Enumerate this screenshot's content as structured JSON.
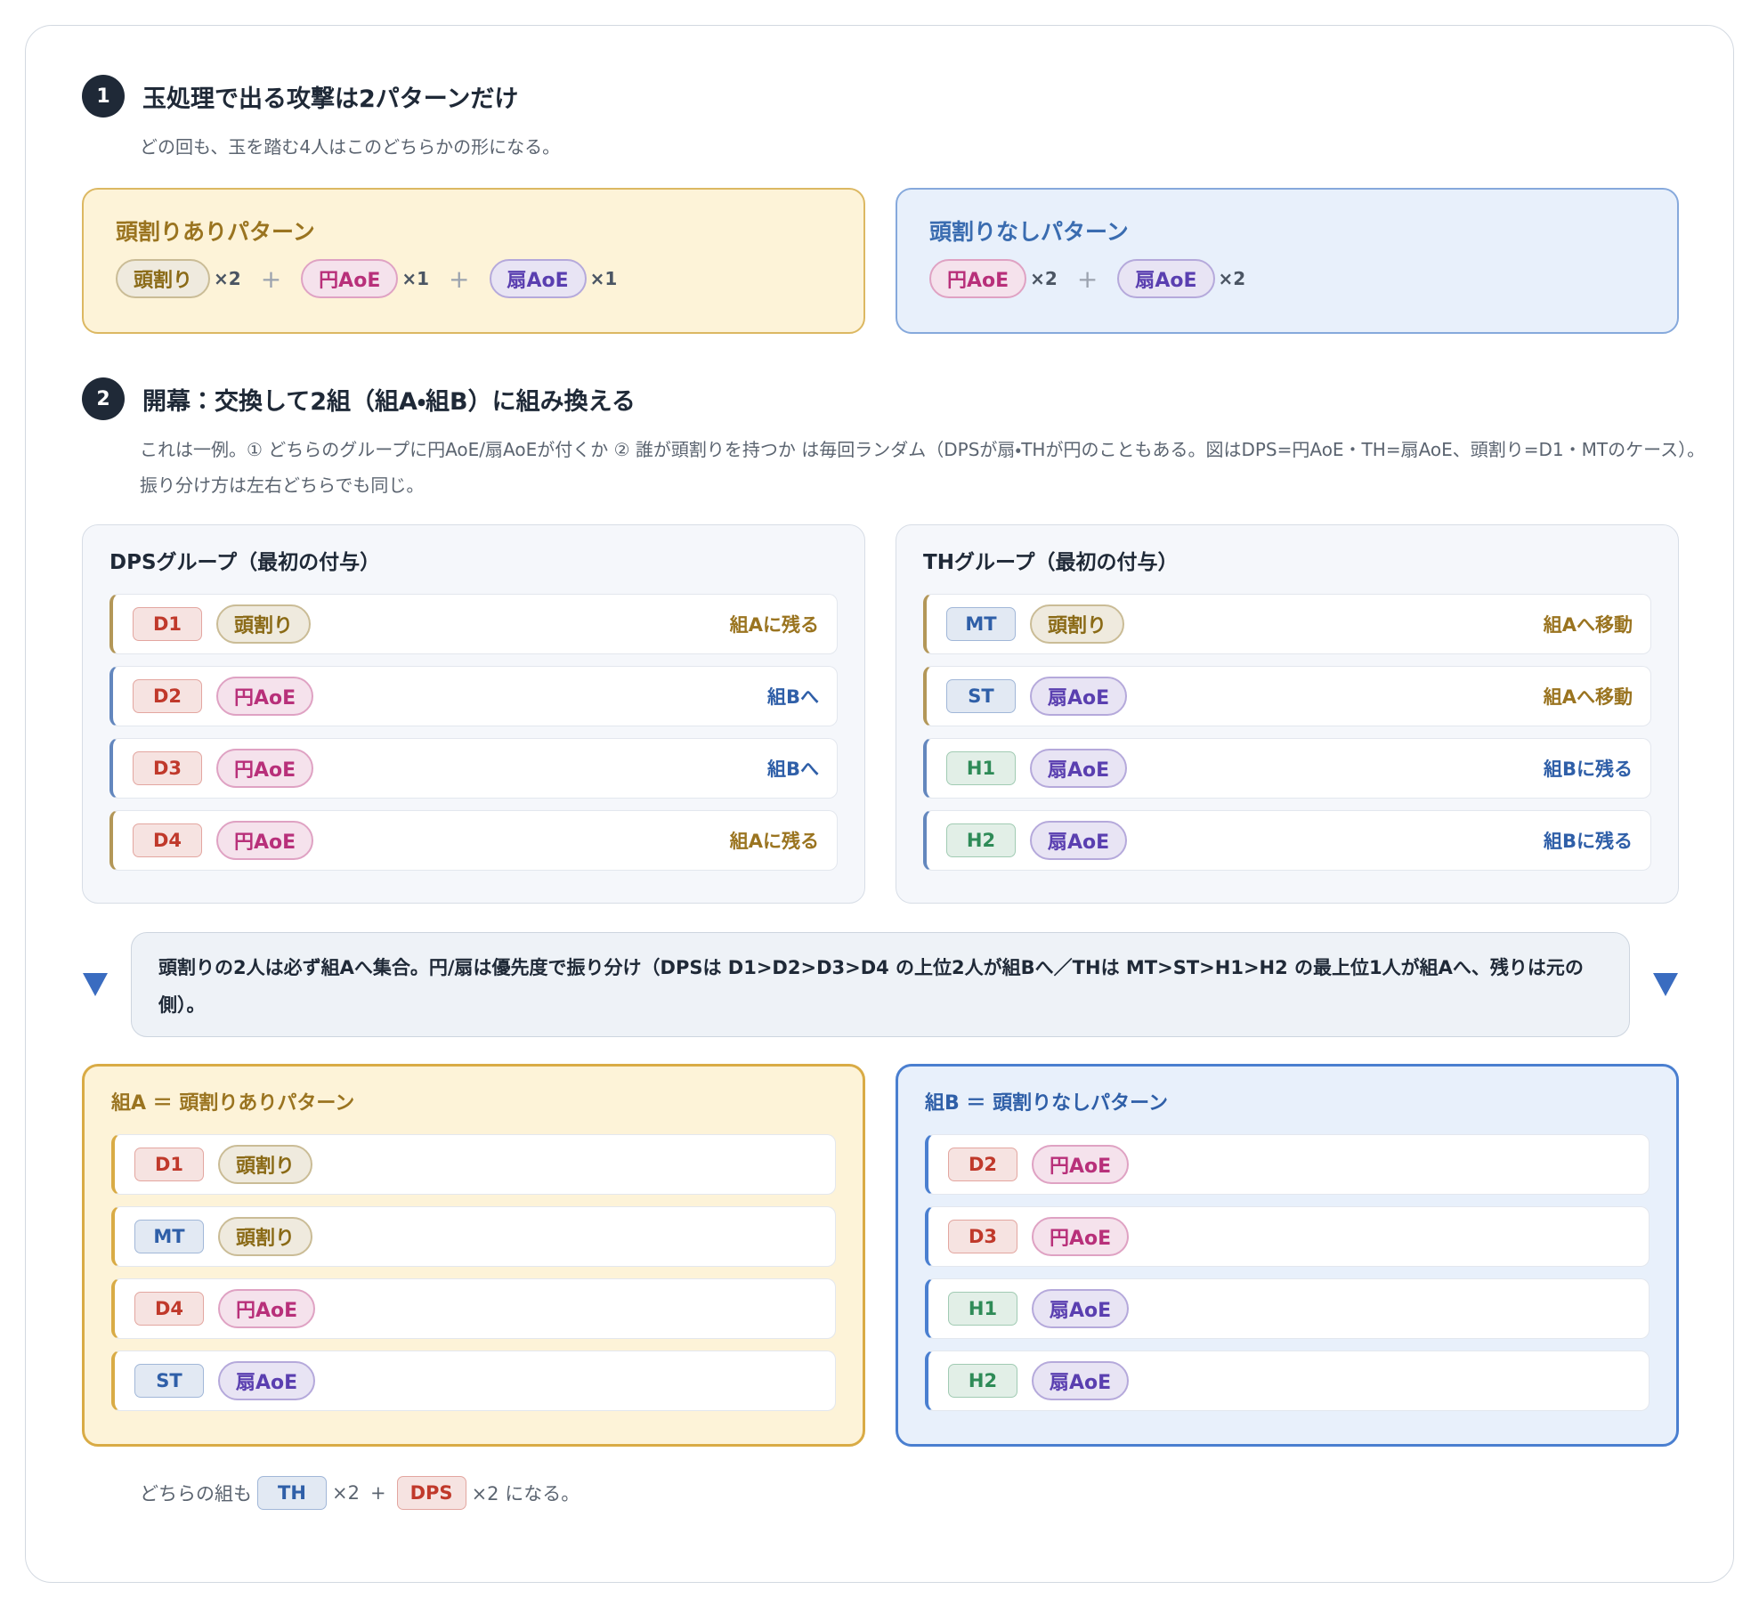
{
  "plus": "+",
  "section1": {
    "number": "1",
    "title": "玉処理で出る攻撃は2パターンだけ",
    "note": "どの回も、玉を踏む4人はこのどちらかの形になる。",
    "patterns": [
      {
        "title": "頭割りありパターン",
        "color": "#9a7420",
        "bg": "#fdf3d8",
        "border": "#dcb862",
        "items": [
          {
            "tag": "頭割り",
            "color": "#8a6a16",
            "count": "×2"
          },
          {
            "tag": "円AoE",
            "color": "#b8307a",
            "count": "×1"
          },
          {
            "tag": "扇AoE",
            "color": "#5a3fb0",
            "count": "×1"
          }
        ]
      },
      {
        "title": "頭割りなしパターン",
        "color": "#3a6cb0",
        "bg": "#e8f0fb",
        "border": "#86a9dc",
        "items": [
          {
            "tag": "円AoE",
            "color": "#b8307a",
            "count": "×2"
          },
          {
            "tag": "扇AoE",
            "color": "#5a3fb0",
            "count": "×2"
          }
        ]
      }
    ]
  },
  "section2": {
    "number": "2",
    "title": "開幕：交換して2組（組A・組B）に組み換える",
    "note": "これは一例。① どちらのグループに円AoE/扇AoEが付くか ② 誰が頭割りを持つか は毎回ランダム（DPSが扇・THが円のこともある。図はDPS=円AoE・TH=扇AoE、頭割り=D1・MTのケース）。振り分け方は左右どちらでも同じ。",
    "groups": [
      {
        "title": "DPSグループ（最初の付与）",
        "rows": [
          {
            "role": "D1",
            "role_color": "#c0392b",
            "tag": "頭割り",
            "tag_color": "#8a6a16",
            "action": "組Aに残る",
            "color": "#9a7420"
          },
          {
            "role": "D2",
            "role_color": "#c0392b",
            "tag": "円AoE",
            "tag_color": "#b8307a",
            "action": "組Bへ",
            "color": "#2f5fa8"
          },
          {
            "role": "D3",
            "role_color": "#c0392b",
            "tag": "円AoE",
            "tag_color": "#b8307a",
            "action": "組Bへ",
            "color": "#2f5fa8"
          },
          {
            "role": "D4",
            "role_color": "#c0392b",
            "tag": "円AoE",
            "tag_color": "#b8307a",
            "action": "組Aに残る",
            "color": "#9a7420"
          }
        ]
      },
      {
        "title": "THグループ（最初の付与）",
        "rows": [
          {
            "role": "MT",
            "role_color": "#2f5fa8",
            "tag": "頭割り",
            "tag_color": "#8a6a16",
            "action": "組Aへ移動",
            "color": "#9a7420"
          },
          {
            "role": "ST",
            "role_color": "#2f5fa8",
            "tag": "扇AoE",
            "tag_color": "#5a3fb0",
            "action": "組Aへ移動",
            "color": "#9a7420"
          },
          {
            "role": "H1",
            "role_color": "#2e8b57",
            "tag": "扇AoE",
            "tag_color": "#5a3fb0",
            "action": "組Bに残る",
            "color": "#2f5fa8"
          },
          {
            "role": "H2",
            "role_color": "#2e8b57",
            "tag": "扇AoE",
            "tag_color": "#5a3fb0",
            "action": "組Bに残る",
            "color": "#2f5fa8"
          }
        ]
      }
    ],
    "rule": "頭割りの2人は必ず組Aへ集合。円/扇は優先度で振り分け（DPSは D1>D2>D3>D4 の上位2人が組Bへ／THは MT>ST>H1>H2 の最上位1人が組Aへ、残りは元の側）。",
    "teams": [
      {
        "title": "組A ＝ 頭割りありパターン",
        "color": "#9a7420",
        "bg": "#fdf3d8",
        "border": "#d9ab45",
        "rows": [
          {
            "role": "D1",
            "role_color": "#c0392b",
            "tag": "頭割り",
            "tag_color": "#8a6a16"
          },
          {
            "role": "MT",
            "role_color": "#2f5fa8",
            "tag": "頭割り",
            "tag_color": "#8a6a16"
          },
          {
            "role": "D4",
            "role_color": "#c0392b",
            "tag": "円AoE",
            "tag_color": "#b8307a"
          },
          {
            "role": "ST",
            "role_color": "#2f5fa8",
            "tag": "扇AoE",
            "tag_color": "#5a3fb0"
          }
        ]
      },
      {
        "title": "組B ＝ 頭割りなしパターン",
        "color": "#2f5fa8",
        "bg": "#e8f0fb",
        "border": "#4a7fd0",
        "rows": [
          {
            "role": "D2",
            "role_color": "#c0392b",
            "tag": "円AoE",
            "tag_color": "#b8307a"
          },
          {
            "role": "D3",
            "role_color": "#c0392b",
            "tag": "円AoE",
            "tag_color": "#b8307a"
          },
          {
            "role": "H1",
            "role_color": "#2e8b57",
            "tag": "扇AoE",
            "tag_color": "#5a3fb0"
          },
          {
            "role": "H2",
            "role_color": "#2e8b57",
            "tag": "扇AoE",
            "tag_color": "#5a3fb0"
          }
        ]
      }
    ],
    "footer": {
      "lead": "どちらの組も",
      "th": "TH",
      "th_color": "#2f5fa8",
      "th_count": "×2",
      "dps": "DPS",
      "dps_color": "#c0392b",
      "dps_count": "×2 になる。"
    }
  }
}
